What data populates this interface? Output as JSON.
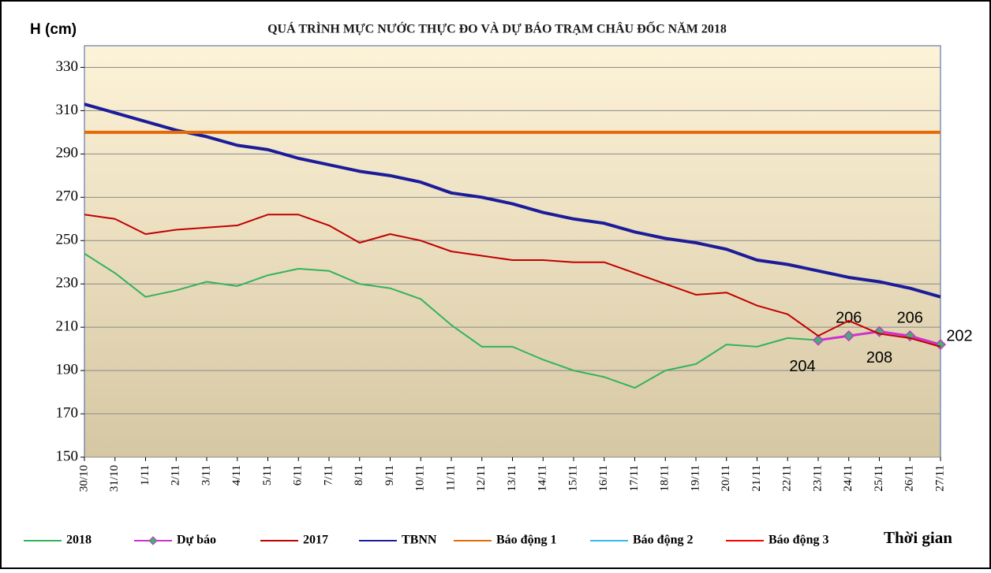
{
  "chart_data": {
    "type": "line",
    "title": "QUÁ TRÌNH MỰC NƯỚC THỰC ĐO VÀ DỰ BÁO TRẠM CHÂU ĐỐC NĂM 2018",
    "y_label": "H (cm)",
    "x_label": "Thời gian",
    "categories": [
      "30/10",
      "31/10",
      "1/11",
      "2/11",
      "3/11",
      "4/11",
      "5/11",
      "6/11",
      "7/11",
      "8/11",
      "9/11",
      "10/11",
      "11/11",
      "12/11",
      "13/11",
      "14/11",
      "15/11",
      "16/11",
      "17/11",
      "18/11",
      "19/11",
      "20/11",
      "21/11",
      "22/11",
      "23/11",
      "24/11",
      "25/11",
      "26/11",
      "27/11"
    ],
    "ylim": [
      150,
      340
    ],
    "yticks": [
      150,
      170,
      190,
      210,
      230,
      250,
      270,
      290,
      310,
      330
    ],
    "grid": true,
    "legend": "bottom",
    "series": [
      {
        "name": "2018",
        "color": "#33b35a",
        "values": [
          244,
          235,
          224,
          227,
          231,
          229,
          234,
          237,
          236,
          230,
          228,
          223,
          211,
          201,
          201,
          195,
          190,
          187,
          182,
          190,
          193,
          202,
          201,
          205,
          204,
          null,
          null,
          null,
          null
        ]
      },
      {
        "name": "Dự báo",
        "color": "#cc33cc",
        "marker": "diamond",
        "data_labels": true,
        "values": [
          null,
          null,
          null,
          null,
          null,
          null,
          null,
          null,
          null,
          null,
          null,
          null,
          null,
          null,
          null,
          null,
          null,
          null,
          null,
          null,
          null,
          null,
          null,
          null,
          204,
          206,
          208,
          206,
          202
        ]
      },
      {
        "name": "2017",
        "color": "#c00000",
        "values": [
          262,
          260,
          253,
          255,
          256,
          257,
          262,
          262,
          257,
          249,
          253,
          250,
          245,
          243,
          241,
          241,
          240,
          240,
          235,
          230,
          225,
          226,
          220,
          216,
          206,
          213,
          207,
          205,
          201
        ]
      },
      {
        "name": "TBNN",
        "color": "#1c1c9a",
        "values": [
          313,
          309,
          305,
          301,
          298,
          294,
          292,
          288,
          285,
          282,
          280,
          277,
          272,
          270,
          267,
          263,
          260,
          258,
          254,
          251,
          249,
          246,
          241,
          239,
          236,
          233,
          231,
          228,
          224
        ]
      },
      {
        "name": "Báo động 1",
        "color": "#e36c09",
        "values": [
          300,
          300,
          300,
          300,
          300,
          300,
          300,
          300,
          300,
          300,
          300,
          300,
          300,
          300,
          300,
          300,
          300,
          300,
          300,
          300,
          300,
          300,
          300,
          300,
          300,
          300,
          300,
          300,
          300
        ]
      },
      {
        "name": "Báo động 2",
        "color": "#33bbee",
        "values": [
          null,
          null,
          null,
          null,
          null,
          null,
          null,
          null,
          null,
          null,
          null,
          null,
          null,
          null,
          null,
          null,
          null,
          null,
          null,
          null,
          null,
          null,
          null,
          null,
          null,
          null,
          null,
          null,
          null
        ]
      },
      {
        "name": "Báo động 3",
        "color": "#ff0000",
        "values": [
          null,
          null,
          null,
          null,
          null,
          null,
          null,
          null,
          null,
          null,
          null,
          null,
          null,
          null,
          null,
          null,
          null,
          null,
          null,
          null,
          null,
          null,
          null,
          null,
          null,
          null,
          null,
          null,
          null
        ]
      }
    ]
  }
}
